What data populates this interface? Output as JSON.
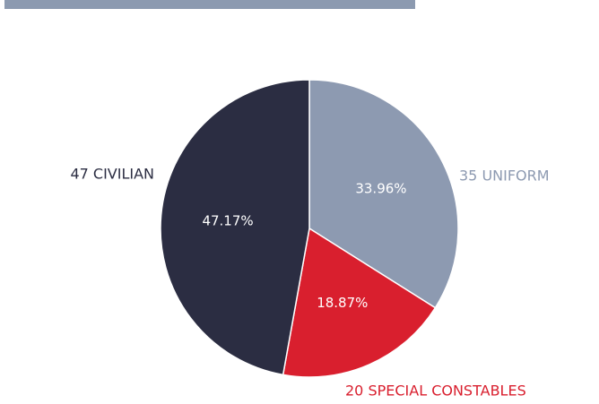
{
  "chart_data": {
    "type": "pie",
    "categories": [
      "35 UNIFORM",
      "20 SPECIAL CONSTABLES",
      "47 CIVILIAN"
    ],
    "values": [
      33.96,
      18.87,
      47.17
    ],
    "value_labels": [
      "33.96%",
      "18.87%",
      "47.17%"
    ],
    "colors": [
      "#8d9ab1",
      "#d91f2e",
      "#2b2d42"
    ]
  }
}
